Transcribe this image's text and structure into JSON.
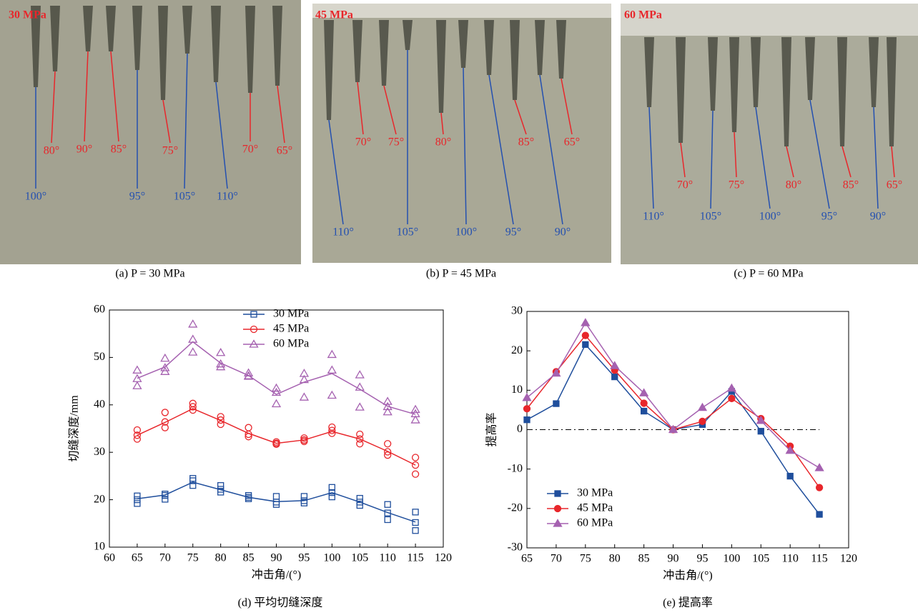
{
  "photos": [
    {
      "caption": "(a) P = 30 MPa",
      "pressure": "30 MPa",
      "red_labels": [
        "80°",
        "90°",
        "85°",
        "75°",
        "70°",
        "65°"
      ],
      "blue_labels": [
        "100°",
        "95°",
        "105°",
        "110°"
      ]
    },
    {
      "caption": "(b) P = 45 MPa",
      "pressure": "45 MPa",
      "red_labels": [
        "70°",
        "75°",
        "80°",
        "85°",
        "65°"
      ],
      "blue_labels": [
        "110°",
        "105°",
        "100°",
        "95°",
        "90°"
      ]
    },
    {
      "caption": "(c) P = 60 MPa",
      "pressure": "60 MPa",
      "red_labels": [
        "70°",
        "75°",
        "80°",
        "85°",
        "65°"
      ],
      "blue_labels": [
        "110°",
        "105°",
        "100°",
        "95°",
        "90°"
      ]
    }
  ],
  "chart_data": [
    {
      "type": "line",
      "caption": "(d) 平均切缝深度",
      "xlabel": "冲击角/(°)",
      "ylabel": "切缝深度/mm",
      "x": [
        65,
        70,
        75,
        80,
        85,
        90,
        95,
        100,
        105,
        110,
        115
      ],
      "xlim": [
        60,
        120
      ],
      "xticks": [
        60,
        65,
        70,
        75,
        80,
        85,
        90,
        95,
        100,
        105,
        110,
        115,
        120
      ],
      "ylim": [
        10,
        60
      ],
      "yticks": [
        10,
        20,
        30,
        40,
        50,
        60
      ],
      "legend": "upper center",
      "series": [
        {
          "name": "30 MPa",
          "color": "#1f4e9c",
          "marker": "square",
          "filled": false,
          "values": [
            20.2,
            21,
            23.7,
            22.1,
            20.5,
            19.6,
            19.8,
            21.5,
            19.5,
            17.3,
            15.3
          ],
          "points": [
            [
              20.8,
              20,
              19.2
            ],
            [
              21.2,
              20.9,
              20.1
            ],
            [
              24.5,
              24,
              23
            ],
            [
              23,
              22.2,
              21.6
            ],
            [
              20.9,
              20.5,
              20.2
            ],
            [
              20.7,
              19.5,
              19
            ],
            [
              20.7,
              19.8,
              19.3
            ],
            [
              22.6,
              21.5,
              20.6
            ],
            [
              20.3,
              19.5,
              18.8
            ],
            [
              19,
              17.2,
              15.8
            ],
            [
              17.4,
              15.2,
              13.5
            ]
          ]
        },
        {
          "name": "45 MPa",
          "color": "#e8262b",
          "marker": "circle",
          "filled": false,
          "values": [
            33.6,
            36.3,
            39.2,
            36.7,
            34,
            31.9,
            32.6,
            34.4,
            32.8,
            30.2,
            27.3
          ],
          "points": [
            [
              34.7,
              33.6,
              32.8
            ],
            [
              38.4,
              36.4,
              35.2
            ],
            [
              40.3,
              39.6,
              38.9
            ],
            [
              37.5,
              36.8,
              35.9
            ],
            [
              35.2,
              33.8,
              33.3
            ],
            [
              32.2,
              31.9,
              31.7
            ],
            [
              33,
              32.6,
              32.3
            ],
            [
              35.3,
              34.6,
              34
            ],
            [
              33.8,
              32.8,
              31.8
            ],
            [
              31.8,
              30.1,
              29.4
            ],
            [
              28.9,
              27.3,
              25.4
            ]
          ]
        },
        {
          "name": "60 MPa",
          "color": "#a561b0",
          "marker": "triangle",
          "filled": false,
          "values": [
            45.6,
            48,
            53.3,
            48.8,
            46.2,
            42.2,
            44.8,
            46.6,
            43.3,
            39.7,
            38
          ],
          "points": [
            [
              47.3,
              45.5,
              44
            ],
            [
              49.8,
              47.8,
              47
            ],
            [
              57,
              53.8,
              51.1
            ],
            [
              51,
              48.6,
              48
            ],
            [
              46.7,
              46.1,
              46
            ],
            [
              43.5,
              42.6,
              40.2
            ],
            [
              46.6,
              45.3,
              41.6
            ],
            [
              50.6,
              47.3,
              42
            ],
            [
              46.3,
              43.7,
              39.5
            ],
            [
              40.7,
              39.6,
              38.5
            ],
            [
              39,
              38.1,
              36.8
            ]
          ]
        }
      ]
    },
    {
      "type": "line",
      "caption": "(e) 提高率",
      "xlabel": "冲击角/(°)",
      "ylabel": "提高率",
      "x": [
        65,
        70,
        75,
        80,
        85,
        90,
        95,
        100,
        105,
        110,
        115
      ],
      "xlim": [
        65,
        120
      ],
      "xticks": [
        65,
        70,
        75,
        80,
        85,
        90,
        95,
        100,
        105,
        110,
        115,
        120
      ],
      "ylim": [
        -30,
        30
      ],
      "yticks": [
        -30,
        -20,
        -10,
        0,
        10,
        20,
        30
      ],
      "legend": "lower left",
      "hline": 0,
      "series": [
        {
          "name": "30 MPa",
          "color": "#1f4e9c",
          "marker": "square",
          "filled": true,
          "values": [
            2.5,
            6.6,
            21.6,
            13.4,
            4.7,
            0,
            1.3,
            9.7,
            -0.4,
            -11.8,
            -21.5
          ]
        },
        {
          "name": "45 MPa",
          "color": "#e8262b",
          "marker": "circle",
          "filled": true,
          "values": [
            5.3,
            14.7,
            23.9,
            15.1,
            6.7,
            0,
            2.1,
            7.9,
            2.8,
            -4.2,
            -14.7
          ]
        },
        {
          "name": "60 MPa",
          "color": "#a561b0",
          "marker": "triangle",
          "filled": true,
          "values": [
            8.1,
            14.3,
            27.1,
            16.2,
            9.3,
            0,
            5.6,
            10.5,
            2.3,
            -5.3,
            -9.7
          ]
        }
      ]
    }
  ]
}
